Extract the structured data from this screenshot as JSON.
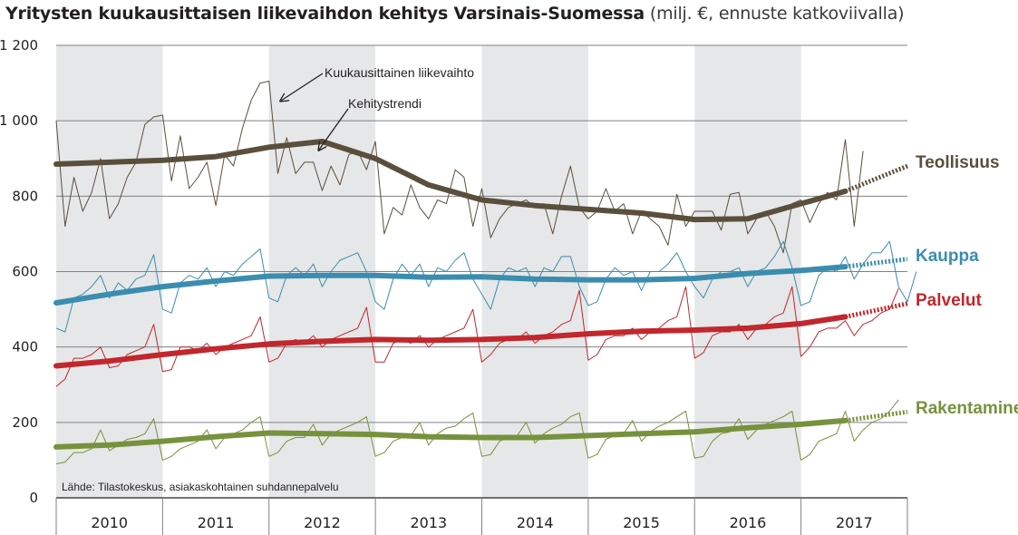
{
  "title": {
    "main": "Yritysten kuukausittaisen liikevaihdon kehitys Varsinais-Suomessa",
    "sub": "(milj. €, ennuste katkoviivalla)"
  },
  "source": "Lähde: Tilastokeskus, asiakaskohtainen suhdannepalvelu",
  "annotations": {
    "monthly": "Kuukausittainen liikevaihto",
    "trend": "Kehitystrendi"
  },
  "colors": {
    "band": "#e6e7e8",
    "grid": "#808285",
    "axis": "#231f20"
  },
  "chart_data": {
    "type": "line",
    "title": "Yritysten kuukausittaisen liikevaihdon kehitys Varsinais-Suomessa",
    "subtitle": "(milj. €, ennuste katkoviivalla)",
    "xlabel": "",
    "ylabel": "",
    "ylim": [
      0,
      1200
    ],
    "y_ticks": [
      0,
      200,
      400,
      600,
      800,
      1000,
      1200
    ],
    "y_tick_labels": [
      "0",
      "200",
      "400",
      "600",
      "800",
      "1 000",
      "1 200"
    ],
    "years": [
      "2010",
      "2011",
      "2012",
      "2013",
      "2014",
      "2015",
      "2016",
      "2017"
    ],
    "x_unit": "month index from January 2010 (0 = January 2010, 96 = January 2018)",
    "xlim": [
      0,
      96
    ],
    "grid": true,
    "alternating_year_bands": true,
    "legend": "labels at the right end of each series",
    "series": [
      {
        "name": "Teollisuus",
        "color": "#5a4f3c",
        "monthly": [
          1000,
          720,
          850,
          760,
          810,
          900,
          740,
          780,
          850,
          890,
          990,
          1010,
          1015,
          840,
          960,
          820,
          850,
          890,
          775,
          910,
          880,
          980,
          1055,
          1100,
          1105,
          860,
          955,
          860,
          890,
          890,
          815,
          880,
          830,
          910,
          920,
          870,
          945,
          700,
          770,
          750,
          830,
          770,
          740,
          790,
          780,
          870,
          850,
          720,
          820,
          690,
          740,
          770,
          780,
          790,
          770,
          780,
          700,
          800,
          880,
          770,
          740,
          760,
          820,
          760,
          780,
          700,
          760,
          740,
          720,
          670,
          805,
          720,
          760,
          760,
          760,
          710,
          805,
          810,
          700,
          740,
          760,
          720,
          650,
          780,
          790,
          730,
          780,
          810,
          790,
          950,
          720,
          920
        ],
        "trend": [
          [
            0,
            885
          ],
          [
            6,
            890
          ],
          [
            12,
            895
          ],
          [
            18,
            905
          ],
          [
            24,
            930
          ],
          [
            30,
            945
          ],
          [
            36,
            900
          ],
          [
            42,
            830
          ],
          [
            48,
            790
          ],
          [
            54,
            775
          ],
          [
            60,
            765
          ],
          [
            66,
            755
          ],
          [
            72,
            738
          ],
          [
            78,
            740
          ],
          [
            84,
            780
          ],
          [
            89,
            813
          ]
        ],
        "forecast": [
          [
            89,
            813
          ],
          [
            96,
            880
          ]
        ]
      },
      {
        "name": "Kauppa",
        "color": "#3a8dae",
        "monthly": [
          450,
          440,
          530,
          540,
          560,
          590,
          530,
          570,
          550,
          580,
          590,
          645,
          500,
          490,
          570,
          590,
          580,
          610,
          560,
          600,
          590,
          620,
          640,
          660,
          530,
          520,
          590,
          610,
          590,
          620,
          560,
          600,
          630,
          640,
          650,
          600,
          520,
          500,
          580,
          620,
          590,
          620,
          560,
          610,
          600,
          630,
          650,
          580,
          540,
          500,
          580,
          610,
          600,
          610,
          560,
          610,
          600,
          640,
          640,
          560,
          510,
          520,
          580,
          610,
          590,
          600,
          550,
          600,
          600,
          620,
          650,
          600,
          560,
          530,
          580,
          600,
          600,
          610,
          560,
          600,
          610,
          640,
          680,
          610,
          510,
          520,
          590,
          610,
          600,
          640,
          580,
          620,
          650,
          650,
          680,
          560,
          520,
          600
        ],
        "trend": [
          [
            0,
            517
          ],
          [
            6,
            540
          ],
          [
            12,
            560
          ],
          [
            18,
            575
          ],
          [
            24,
            588
          ],
          [
            30,
            590
          ],
          [
            36,
            590
          ],
          [
            42,
            585
          ],
          [
            48,
            586
          ],
          [
            54,
            580
          ],
          [
            60,
            578
          ],
          [
            66,
            578
          ],
          [
            72,
            582
          ],
          [
            78,
            595
          ],
          [
            84,
            603
          ],
          [
            89,
            613
          ]
        ],
        "forecast": [
          [
            89,
            613
          ],
          [
            96,
            633
          ]
        ]
      },
      {
        "name": "Palvelut",
        "color": "#c1272d",
        "monthly": [
          295,
          315,
          370,
          370,
          380,
          400,
          345,
          350,
          380,
          390,
          400,
          460,
          335,
          340,
          400,
          400,
          390,
          410,
          380,
          400,
          410,
          420,
          430,
          480,
          360,
          370,
          410,
          420,
          410,
          430,
          400,
          420,
          430,
          440,
          450,
          505,
          360,
          360,
          410,
          420,
          410,
          430,
          400,
          420,
          430,
          440,
          450,
          500,
          360,
          380,
          410,
          420,
          420,
          440,
          410,
          430,
          440,
          460,
          470,
          550,
          365,
          380,
          420,
          430,
          430,
          450,
          420,
          440,
          450,
          470,
          480,
          560,
          370,
          385,
          430,
          440,
          440,
          460,
          420,
          450,
          460,
          480,
          490,
          560,
          375,
          400,
          440,
          450,
          450,
          470,
          430,
          460,
          470,
          490,
          500,
          555
        ],
        "trend": [
          [
            0,
            350
          ],
          [
            6,
            363
          ],
          [
            12,
            380
          ],
          [
            18,
            395
          ],
          [
            24,
            408
          ],
          [
            30,
            415
          ],
          [
            36,
            420
          ],
          [
            42,
            418
          ],
          [
            48,
            420
          ],
          [
            54,
            425
          ],
          [
            60,
            435
          ],
          [
            66,
            442
          ],
          [
            72,
            445
          ],
          [
            78,
            450
          ],
          [
            84,
            462
          ],
          [
            89,
            480
          ]
        ],
        "forecast": [
          [
            89,
            480
          ],
          [
            96,
            515
          ]
        ]
      },
      {
        "name": "Rakentaminen",
        "color": "#76923c",
        "monthly": [
          90,
          95,
          120,
          120,
          130,
          180,
          125,
          140,
          155,
          160,
          170,
          210,
          100,
          110,
          130,
          140,
          150,
          180,
          130,
          160,
          170,
          180,
          200,
          215,
          110,
          120,
          150,
          160,
          160,
          195,
          140,
          170,
          180,
          190,
          200,
          215,
          110,
          120,
          150,
          160,
          165,
          200,
          140,
          170,
          185,
          190,
          210,
          225,
          110,
          115,
          150,
          160,
          165,
          200,
          145,
          170,
          185,
          195,
          215,
          225,
          105,
          115,
          155,
          165,
          170,
          205,
          150,
          175,
          190,
          200,
          215,
          230,
          105,
          110,
          150,
          170,
          175,
          210,
          155,
          180,
          195,
          205,
          215,
          230,
          100,
          115,
          150,
          160,
          170,
          230,
          150,
          180,
          200,
          210,
          230,
          260
        ],
        "trend": [
          [
            0,
            135
          ],
          [
            6,
            140
          ],
          [
            12,
            150
          ],
          [
            18,
            162
          ],
          [
            24,
            172
          ],
          [
            30,
            170
          ],
          [
            36,
            168
          ],
          [
            42,
            162
          ],
          [
            48,
            160
          ],
          [
            54,
            160
          ],
          [
            60,
            165
          ],
          [
            66,
            170
          ],
          [
            72,
            175
          ],
          [
            78,
            186
          ],
          [
            84,
            195
          ],
          [
            89,
            205
          ]
        ],
        "forecast": [
          [
            89,
            205
          ],
          [
            96,
            228
          ]
        ]
      }
    ]
  }
}
